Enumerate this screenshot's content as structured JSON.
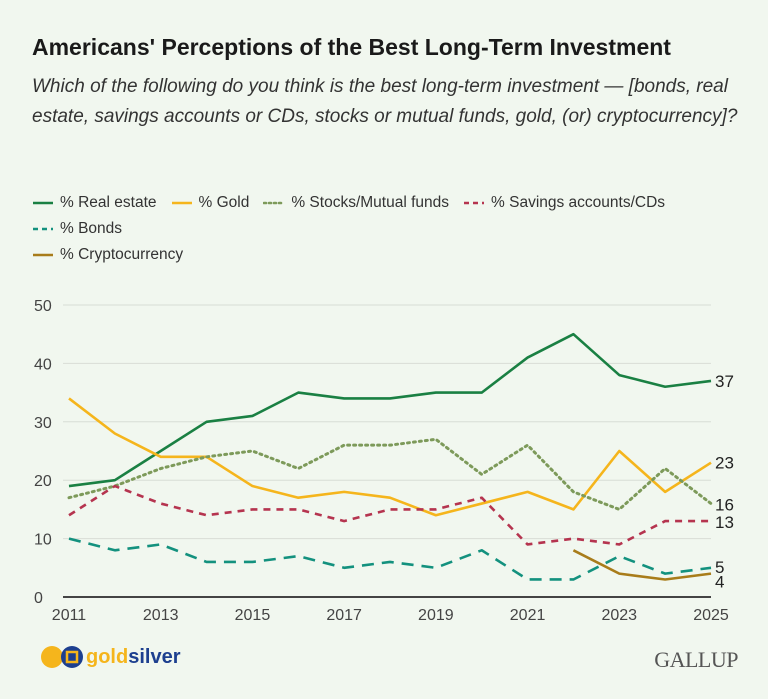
{
  "title": "Americans' Perceptions of the Best Long-Term Investment",
  "subtitle": "Which of the following do you think is the best long-term investment — [bonds, real estate, savings accounts or CDs, stocks or mutual funds, gold, (or) cryptocurrency]?",
  "brand": {
    "gold": "gold",
    "silver": "silver"
  },
  "source_logo": "GALLUP",
  "chart_data": {
    "type": "line",
    "title": "Americans' Perceptions of the Best Long-Term Investment",
    "x": [
      2011,
      2012,
      2013,
      2014,
      2015,
      2016,
      2017,
      2018,
      2019,
      2020,
      2021,
      2022,
      2023,
      2024,
      2025
    ],
    "xticks": [
      "2011",
      "2013",
      "2015",
      "2017",
      "2019",
      "2021",
      "2023",
      "2025"
    ],
    "yticks": [
      "0",
      "10",
      "20",
      "30",
      "40",
      "50"
    ],
    "ylim": [
      0,
      50
    ],
    "grid": true,
    "legend_placement": "top",
    "series": [
      {
        "name": "% Real estate",
        "color": "#1a8043",
        "style": "solid",
        "end_label": "37",
        "values": [
          19,
          20,
          25,
          30,
          31,
          35,
          34,
          34,
          35,
          35,
          41,
          45,
          38,
          36,
          37
        ]
      },
      {
        "name": "% Gold",
        "color": "#f5b51c",
        "style": "solid",
        "end_label": "23",
        "values": [
          34,
          28,
          24,
          24,
          19,
          17,
          18,
          17,
          14,
          16,
          18,
          15,
          25,
          18,
          23
        ]
      },
      {
        "name": "% Stocks/Mutual funds",
        "color": "#7d9a5a",
        "style": "dotted",
        "end_label": "16",
        "values": [
          17,
          19,
          22,
          24,
          25,
          22,
          26,
          26,
          27,
          21,
          26,
          18,
          15,
          22,
          16
        ]
      },
      {
        "name": "% Savings accounts/CDs",
        "color": "#b5344f",
        "style": "dashed",
        "end_label": "13",
        "values": [
          14,
          19,
          16,
          14,
          15,
          15,
          13,
          15,
          15,
          17,
          9,
          10,
          9,
          13,
          13
        ]
      },
      {
        "name": "% Bonds",
        "color": "#13917e",
        "style": "longdash",
        "end_label": "5",
        "values": [
          10,
          8,
          9,
          6,
          6,
          7,
          5,
          6,
          5,
          8,
          3,
          3,
          7,
          4,
          5
        ]
      },
      {
        "name": "% Cryptocurrency",
        "color": "#a87c1a",
        "style": "solid",
        "end_label": "4",
        "values": [
          null,
          null,
          null,
          null,
          null,
          null,
          null,
          null,
          null,
          null,
          null,
          8,
          4,
          3,
          4
        ]
      }
    ]
  }
}
